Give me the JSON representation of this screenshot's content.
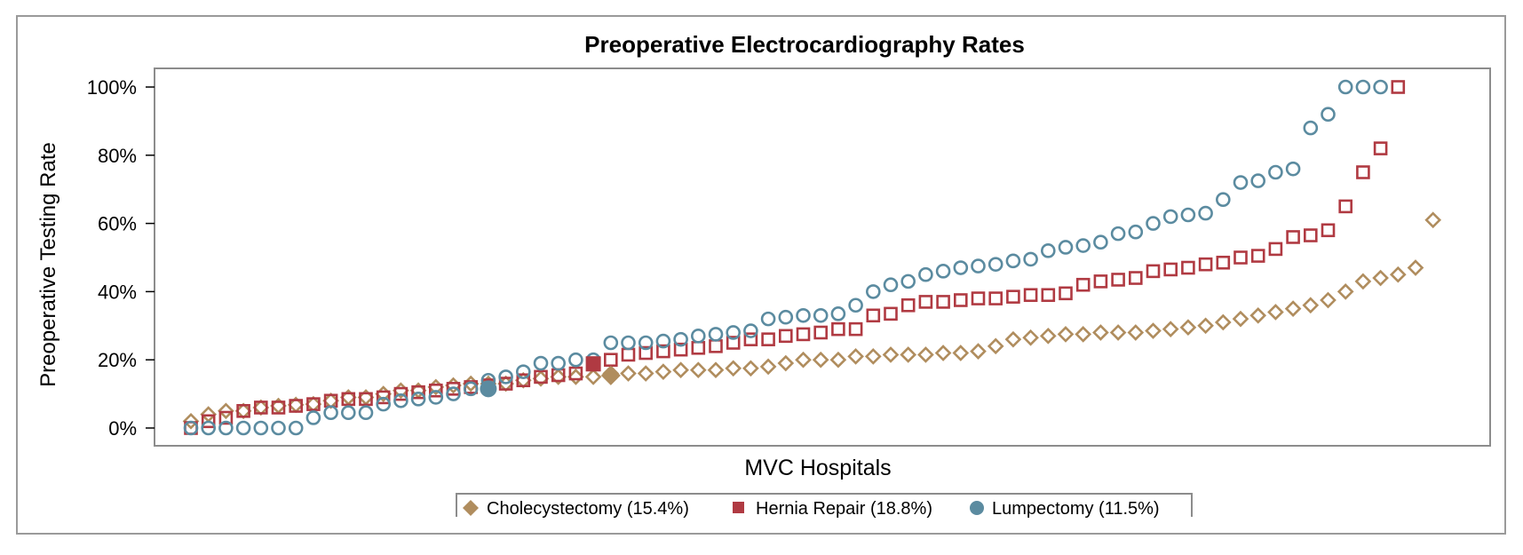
{
  "chart_data": {
    "type": "scatter",
    "title": "Preoperative Electrocardiography Rates",
    "xlabel": "MVC Hospitals",
    "ylabel": "Preoperative Testing Rate",
    "ylim": [
      0,
      1.05
    ],
    "y_ticks": [
      0,
      0.2,
      0.4,
      0.6,
      0.8,
      1.0
    ],
    "y_tick_labels": [
      "0%",
      "20%",
      "40%",
      "60%",
      "80%",
      "100%"
    ],
    "x_ticks_shown": false,
    "grid": false,
    "legend_position": "bottom",
    "colors": {
      "cholecystectomy": "#b08d5e",
      "hernia": "#b03a42",
      "lumpectomy": "#5b8ba0",
      "frame": "#8c8c8c"
    },
    "series": [
      {
        "name": "Cholecystectomy (15.4%)",
        "marker": "diamond",
        "color": "#b08d5e",
        "values": [
          0.02,
          0.04,
          0.05,
          0.05,
          0.06,
          0.065,
          0.068,
          0.07,
          0.08,
          0.09,
          0.09,
          0.1,
          0.11,
          0.11,
          0.12,
          0.125,
          0.13,
          0.13,
          0.13,
          0.14,
          0.145,
          0.15,
          0.15,
          0.15,
          0.16,
          0.16,
          0.16,
          0.165,
          0.17,
          0.17,
          0.17,
          0.175,
          0.175,
          0.18,
          0.19,
          0.2,
          0.2,
          0.2,
          0.21,
          0.21,
          0.215,
          0.215,
          0.215,
          0.22,
          0.22,
          0.225,
          0.24,
          0.26,
          0.265,
          0.27,
          0.275,
          0.275,
          0.28,
          0.28,
          0.28,
          0.285,
          0.29,
          0.295,
          0.3,
          0.31,
          0.32,
          0.33,
          0.34,
          0.35,
          0.36,
          0.375,
          0.4,
          0.43,
          0.44,
          0.45,
          0.47,
          0.61
        ],
        "summary": {
          "index": 24,
          "value": 0.154
        }
      },
      {
        "name": "Hernia Repair (18.8%)",
        "marker": "square",
        "color": "#b03a42",
        "values": [
          0.0,
          0.02,
          0.03,
          0.05,
          0.06,
          0.06,
          0.065,
          0.07,
          0.08,
          0.085,
          0.085,
          0.09,
          0.1,
          0.105,
          0.11,
          0.115,
          0.12,
          0.125,
          0.13,
          0.14,
          0.15,
          0.155,
          0.16,
          0.19,
          0.2,
          0.215,
          0.22,
          0.225,
          0.23,
          0.235,
          0.24,
          0.25,
          0.26,
          0.26,
          0.27,
          0.275,
          0.28,
          0.29,
          0.29,
          0.33,
          0.335,
          0.36,
          0.37,
          0.37,
          0.375,
          0.38,
          0.38,
          0.385,
          0.39,
          0.39,
          0.395,
          0.42,
          0.43,
          0.435,
          0.44,
          0.46,
          0.465,
          0.47,
          0.48,
          0.485,
          0.5,
          0.505,
          0.525,
          0.56,
          0.565,
          0.58,
          0.65,
          0.75,
          0.82,
          1.0
        ],
        "summary": {
          "index": 23,
          "value": 0.188
        }
      },
      {
        "name": "Lumpectomy (11.5%)",
        "marker": "circle",
        "color": "#5b8ba0",
        "values": [
          0.0,
          0.0,
          0.0,
          0.0,
          0.0,
          0.0,
          0.0,
          0.03,
          0.045,
          0.045,
          0.045,
          0.07,
          0.08,
          0.085,
          0.09,
          0.1,
          0.115,
          0.14,
          0.15,
          0.165,
          0.19,
          0.19,
          0.2,
          0.2,
          0.25,
          0.25,
          0.25,
          0.255,
          0.26,
          0.27,
          0.275,
          0.28,
          0.285,
          0.32,
          0.325,
          0.33,
          0.33,
          0.335,
          0.36,
          0.4,
          0.42,
          0.43,
          0.45,
          0.46,
          0.47,
          0.475,
          0.48,
          0.49,
          0.495,
          0.52,
          0.53,
          0.535,
          0.545,
          0.57,
          0.575,
          0.6,
          0.62,
          0.625,
          0.63,
          0.67,
          0.72,
          0.725,
          0.75,
          0.76,
          0.88,
          0.92,
          1.0,
          1.0,
          1.0
        ],
        "summary": {
          "index": 17,
          "value": 0.115
        }
      }
    ]
  }
}
